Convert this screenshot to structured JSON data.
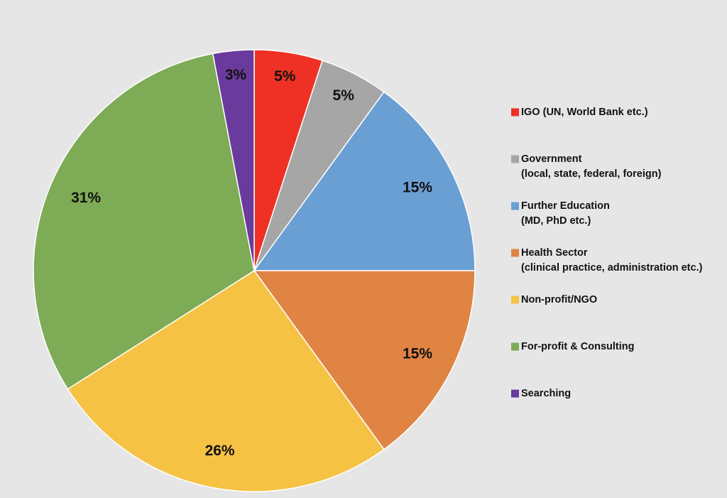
{
  "chart_data": {
    "type": "pie",
    "categories": [
      "IGO (UN, World Bank etc.)",
      "Government (local, state, federal, foreign)",
      "Further Education (MD, PhD etc.)",
      "Health Sector (clinical practice, administration etc.)",
      "Non-profit/NGO",
      "For-profit & Consulting",
      "Searching"
    ],
    "values": [
      5,
      5,
      15,
      15,
      26,
      31,
      3
    ],
    "labels": [
      "5%",
      "5%",
      "15%",
      "15%",
      "26%",
      "31%",
      "3%"
    ],
    "legend": [
      {
        "lines": [
          "IGO (UN, World Bank etc.)"
        ]
      },
      {
        "lines": [
          "Government",
          "(local, state, federal, foreign)"
        ]
      },
      {
        "lines": [
          "Further Education",
          "(MD, PhD etc.)"
        ]
      },
      {
        "lines": [
          "Health Sector",
          "(clinical practice, administration etc.)"
        ]
      },
      {
        "lines": [
          "Non-profit/NGO"
        ]
      },
      {
        "lines": [
          "For-profit & Consulting"
        ]
      },
      {
        "lines": [
          "Searching"
        ]
      }
    ],
    "colors": [
      "#ee3124",
      "#a6a6a6",
      "#6a9fd4",
      "#e08444",
      "#f5c244",
      "#7eab55",
      "#6a3a9c"
    ],
    "legend_position": "right",
    "start_angle": "12 o'clock",
    "direction": "clockwise"
  }
}
